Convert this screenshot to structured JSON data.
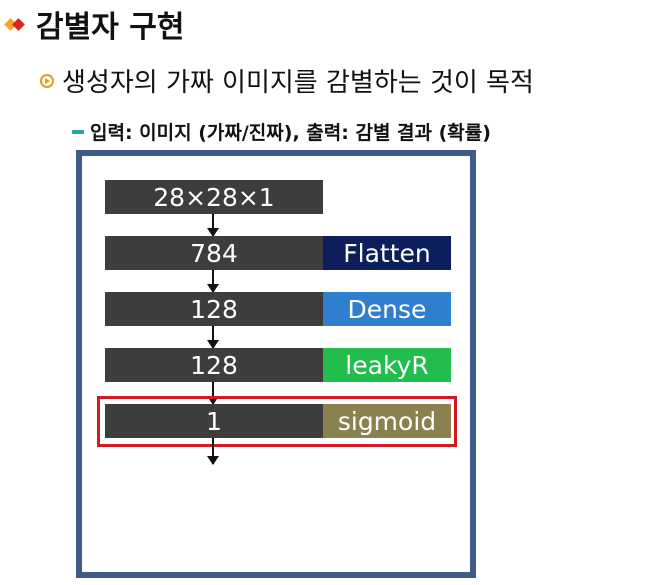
{
  "header": {
    "title": "감별자 구현",
    "subtitle": "생성자의 가짜 이미지를 감별하는 것이 목적",
    "detail": "입력: 이미지 (가짜/진짜), 출력: 감별 결과 (확률)"
  },
  "diagram": {
    "layers": [
      {
        "size": "28×28×1",
        "label": ""
      },
      {
        "size": "784",
        "label": "Flatten"
      },
      {
        "size": "128",
        "label": "Dense"
      },
      {
        "size": "128",
        "label": "leakyR"
      },
      {
        "size": "1",
        "label": "sigmoid"
      }
    ]
  },
  "colors": {
    "frame": "#3c5b86",
    "flatten": "#0c1f5c",
    "dense": "#2f7fce",
    "leaky": "#21be4d",
    "sigmoid": "#8a8050",
    "highlight": "#d11a22"
  }
}
